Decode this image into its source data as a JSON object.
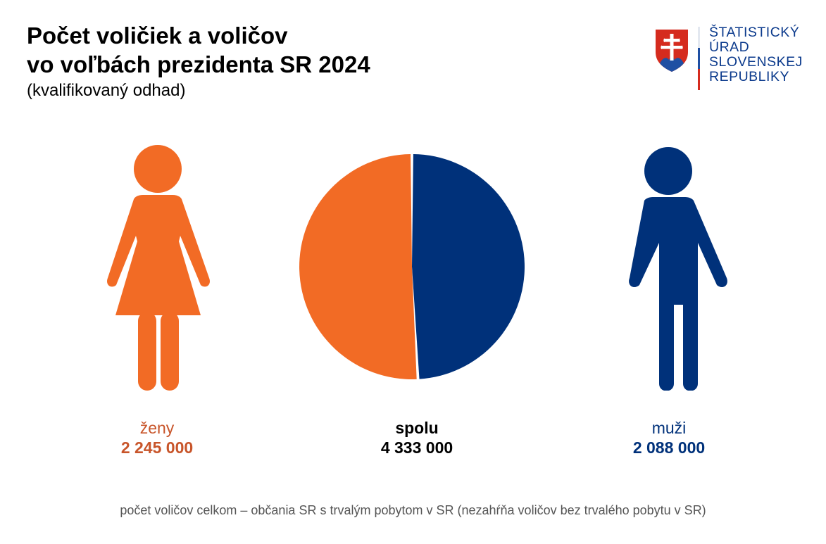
{
  "title_line1": "Počet voličiek a voličov",
  "title_line2": "vo voľbách prezidenta SR 2024",
  "subtitle": "(kvalifikovaný odhad)",
  "logo": {
    "emblem": "slovak-coat-of-arms-icon",
    "lines": [
      "ŠTATISTICKÝ",
      "ÚRAD",
      "SLOVENSKEJ",
      "REPUBLIKY"
    ],
    "text_color": "#0b3a8c",
    "divider_colors": [
      "#ffffff",
      "#1f4fa3",
      "#d52b1e"
    ]
  },
  "colors": {
    "women": "#f26b25",
    "men": "#00317a",
    "women_label": "#c8552a",
    "total": "#000000",
    "separator": "#ffffff"
  },
  "icons": {
    "women": "woman-icon",
    "men": "man-icon"
  },
  "women": {
    "label": "ženy",
    "value": "2 245 000"
  },
  "total": {
    "label": "spolu",
    "value": "4 333 000"
  },
  "men": {
    "label": "muži",
    "value": "2 088 000"
  },
  "footnote": "počet voličov celkom – občania SR s trvalým pobytom v SR (nezahŕňa voličov bez trvalého pobytu v SR)",
  "chart_data": {
    "type": "pie",
    "title": "Počet voličiek a voličov vo voľbách prezidenta SR 2024",
    "subtitle": "(kvalifikovaný odhad)",
    "total_label": "spolu",
    "total": 4333000,
    "categories": [
      "ženy",
      "muži"
    ],
    "values": [
      2245000,
      2088000
    ],
    "value_labels": [
      "2 245 000",
      "2 088 000"
    ],
    "colors": [
      "#f26b25",
      "#00317a"
    ],
    "start": "12 o'clock, men clockwise on the right"
  }
}
